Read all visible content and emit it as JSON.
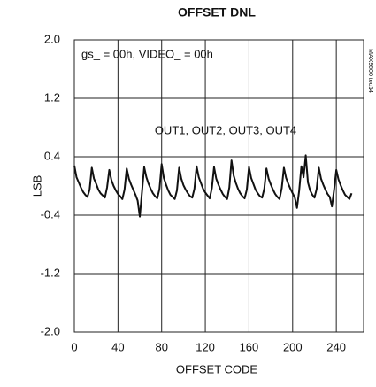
{
  "chart_data": {
    "type": "line",
    "title": "OFFSET DNL",
    "x_label": "OFFSET CODE",
    "y_label": "LSB",
    "annotations": [
      "gs_ = 00h, VIDEO_ = 00h",
      "OUT1, OUT2, OUT3, OUT4",
      "MAX9600 toc14"
    ],
    "xlim": [
      0,
      265
    ],
    "xticks": [
      0,
      40,
      80,
      120,
      160,
      200,
      240
    ],
    "ylim": [
      -2,
      2
    ],
    "yticks": [
      {
        "value": 2,
        "label": "2.0"
      },
      1.2,
      0.4,
      -0.4,
      -1.2,
      {
        "value": -2,
        "label": "-2.0"
      }
    ],
    "grid": true,
    "x": [
      0,
      2,
      4,
      6,
      8,
      10,
      12,
      14,
      16,
      18,
      20,
      22,
      24,
      26,
      28,
      30,
      32,
      34,
      36,
      38,
      40,
      42,
      44,
      46,
      48,
      50,
      52,
      54,
      56,
      58,
      60,
      62,
      64,
      66,
      68,
      70,
      72,
      74,
      76,
      78,
      80,
      82,
      84,
      86,
      88,
      90,
      92,
      94,
      96,
      98,
      100,
      102,
      104,
      106,
      108,
      110,
      112,
      114,
      116,
      118,
      120,
      122,
      124,
      126,
      128,
      130,
      132,
      134,
      136,
      138,
      140,
      142,
      144,
      146,
      148,
      150,
      152,
      154,
      156,
      158,
      160,
      162,
      164,
      166,
      168,
      170,
      172,
      174,
      176,
      178,
      180,
      182,
      184,
      186,
      188,
      190,
      192,
      194,
      196,
      198,
      200,
      202,
      204,
      206,
      208,
      210,
      212,
      214,
      216,
      218,
      220,
      222,
      224,
      226,
      228,
      230,
      232,
      234,
      236,
      238,
      240,
      242,
      244,
      246,
      248,
      250,
      252,
      254
    ],
    "series": [
      {
        "color": "#111111",
        "values": [
          0.28,
          0.12,
          0.05,
          -0.02,
          -0.08,
          -0.12,
          -0.15,
          -0.05,
          0.25,
          0.1,
          0.03,
          -0.05,
          -0.1,
          -0.13,
          -0.16,
          -0.02,
          0.22,
          0.08,
          0.0,
          -0.06,
          -0.11,
          -0.14,
          -0.18,
          -0.05,
          0.24,
          0.1,
          0.02,
          -0.05,
          -0.12,
          -0.2,
          -0.42,
          -0.08,
          0.26,
          0.12,
          0.03,
          -0.04,
          -0.1,
          -0.14,
          -0.17,
          -0.04,
          0.3,
          0.11,
          0.02,
          -0.06,
          -0.12,
          -0.15,
          -0.18,
          -0.06,
          0.25,
          0.1,
          0.01,
          -0.05,
          -0.1,
          -0.14,
          -0.16,
          -0.04,
          0.27,
          0.12,
          0.04,
          -0.04,
          -0.09,
          -0.13,
          -0.17,
          -0.03,
          0.26,
          0.1,
          0.02,
          -0.05,
          -0.11,
          -0.15,
          -0.18,
          -0.02,
          0.35,
          0.14,
          0.04,
          -0.04,
          -0.1,
          -0.14,
          -0.17,
          -0.05,
          0.26,
          0.11,
          0.03,
          -0.05,
          -0.1,
          -0.14,
          -0.16,
          -0.04,
          0.24,
          0.1,
          0.02,
          -0.05,
          -0.11,
          -0.15,
          -0.18,
          -0.03,
          0.25,
          0.11,
          0.03,
          -0.04,
          -0.1,
          -0.16,
          -0.3,
          -0.06,
          0.27,
          0.12,
          0.42,
          0.05,
          -0.06,
          -0.12,
          -0.16,
          -0.04,
          0.25,
          0.1,
          0.02,
          -0.05,
          -0.11,
          -0.15,
          -0.28,
          -0.05,
          0.22,
          0.09,
          0.01,
          -0.06,
          -0.12,
          -0.15,
          -0.18,
          -0.1
        ]
      }
    ]
  }
}
